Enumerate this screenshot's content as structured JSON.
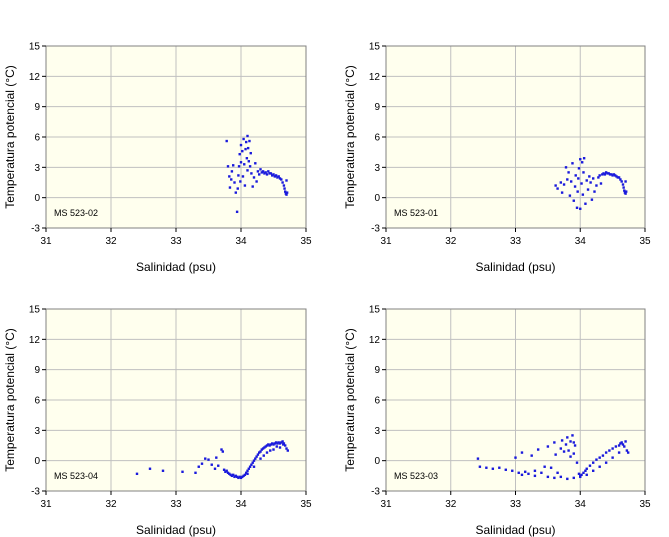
{
  "chart_data": [
    {
      "type": "scatter",
      "title": "",
      "station_label": "MS 523-02",
      "xlabel": "Salinidad (psu)",
      "ylabel": "Temperatura potencial (°C)",
      "xlim": [
        31,
        35
      ],
      "ylim": [
        -3,
        15
      ],
      "xticks": [
        "31",
        "32",
        "33",
        "34",
        "35"
      ],
      "yticks": [
        "-3",
        "0",
        "3",
        "6",
        "9",
        "12",
        "15"
      ],
      "grid": true,
      "point_color": "#1a1adc",
      "plot_background": "#ffffee",
      "points": [
        [
          33.78,
          5.6
        ],
        [
          33.8,
          3.1
        ],
        [
          33.82,
          2.1
        ],
        [
          33.83,
          1.0
        ],
        [
          33.85,
          1.8
        ],
        [
          33.86,
          2.6
        ],
        [
          33.88,
          3.2
        ],
        [
          33.9,
          1.5
        ],
        [
          33.92,
          0.5
        ],
        [
          33.94,
          -1.4
        ],
        [
          33.95,
          0.9
        ],
        [
          33.96,
          2.2
        ],
        [
          33.97,
          3.1
        ],
        [
          33.98,
          4.3
        ],
        [
          33.99,
          1.6
        ],
        [
          34.0,
          3.5
        ],
        [
          34.0,
          5.2
        ],
        [
          34.02,
          4.6
        ],
        [
          34.03,
          2.1
        ],
        [
          34.04,
          5.8
        ],
        [
          34.05,
          3.3
        ],
        [
          34.06,
          1.2
        ],
        [
          34.07,
          4.8
        ],
        [
          34.08,
          5.5
        ],
        [
          34.09,
          3.9
        ],
        [
          34.1,
          6.1
        ],
        [
          34.1,
          2.7
        ],
        [
          34.11,
          4.9
        ],
        [
          34.12,
          3.6
        ],
        [
          34.13,
          5.6
        ],
        [
          34.14,
          3.1
        ],
        [
          34.15,
          4.4
        ],
        [
          34.16,
          2.4
        ],
        [
          34.18,
          1.1
        ],
        [
          34.2,
          2.0
        ],
        [
          34.22,
          3.4
        ],
        [
          34.24,
          1.6
        ],
        [
          34.26,
          2.6
        ],
        [
          34.28,
          2.3
        ],
        [
          34.3,
          2.8
        ],
        [
          34.32,
          2.5
        ],
        [
          34.34,
          2.6
        ],
        [
          34.36,
          2.4
        ],
        [
          34.38,
          2.5
        ],
        [
          34.4,
          2.3
        ],
        [
          34.42,
          2.6
        ],
        [
          34.44,
          2.4
        ],
        [
          34.46,
          2.4
        ],
        [
          34.48,
          2.2
        ],
        [
          34.5,
          2.3
        ],
        [
          34.52,
          2.1
        ],
        [
          34.54,
          2.2
        ],
        [
          34.56,
          2.0
        ],
        [
          34.58,
          2.1
        ],
        [
          34.6,
          1.9
        ],
        [
          34.62,
          1.8
        ],
        [
          34.64,
          1.5
        ],
        [
          34.66,
          1.2
        ],
        [
          34.67,
          0.9
        ],
        [
          34.68,
          0.6
        ],
        [
          34.69,
          0.4
        ],
        [
          34.7,
          0.3
        ],
        [
          34.7,
          1.7
        ],
        [
          34.71,
          0.5
        ]
      ]
    },
    {
      "type": "scatter",
      "title": "",
      "station_label": "MS 523-01",
      "xlabel": "Salinidad (psu)",
      "ylabel": "Temperatura potencial (°C)",
      "xlim": [
        31,
        35
      ],
      "ylim": [
        -3,
        15
      ],
      "xticks": [
        "31",
        "32",
        "33",
        "34",
        "35"
      ],
      "yticks": [
        "-3",
        "0",
        "3",
        "6",
        "9",
        "12",
        "15"
      ],
      "grid": true,
      "point_color": "#1a1adc",
      "plot_background": "#ffffee",
      "points": [
        [
          33.62,
          1.2
        ],
        [
          33.65,
          0.9
        ],
        [
          33.7,
          1.5
        ],
        [
          33.72,
          0.5
        ],
        [
          33.75,
          1.3
        ],
        [
          33.78,
          3.0
        ],
        [
          33.8,
          1.8
        ],
        [
          33.82,
          2.5
        ],
        [
          33.84,
          0.2
        ],
        [
          33.86,
          1.6
        ],
        [
          33.88,
          3.4
        ],
        [
          33.9,
          -0.3
        ],
        [
          33.92,
          1.1
        ],
        [
          33.93,
          2.2
        ],
        [
          33.95,
          -1.0
        ],
        [
          33.96,
          0.6
        ],
        [
          33.97,
          1.9
        ],
        [
          33.98,
          2.9
        ],
        [
          34.0,
          3.8
        ],
        [
          34.0,
          -1.1
        ],
        [
          34.02,
          1.4
        ],
        [
          34.03,
          3.5
        ],
        [
          34.04,
          0.3
        ],
        [
          34.05,
          2.5
        ],
        [
          34.06,
          3.9
        ],
        [
          34.08,
          -0.6
        ],
        [
          34.1,
          1.7
        ],
        [
          34.12,
          0.8
        ],
        [
          34.14,
          2.1
        ],
        [
          34.16,
          1.5
        ],
        [
          34.18,
          -0.2
        ],
        [
          34.2,
          1.9
        ],
        [
          34.22,
          0.6
        ],
        [
          34.25,
          1.2
        ],
        [
          34.28,
          2.0
        ],
        [
          34.3,
          2.2
        ],
        [
          34.32,
          1.4
        ],
        [
          34.34,
          2.3
        ],
        [
          34.36,
          2.4
        ],
        [
          34.38,
          2.3
        ],
        [
          34.4,
          2.5
        ],
        [
          34.42,
          2.4
        ],
        [
          34.44,
          2.4
        ],
        [
          34.46,
          2.3
        ],
        [
          34.48,
          2.3
        ],
        [
          34.5,
          2.2
        ],
        [
          34.52,
          2.3
        ],
        [
          34.54,
          2.2
        ],
        [
          34.56,
          2.1
        ],
        [
          34.58,
          2.0
        ],
        [
          34.6,
          2.0
        ],
        [
          34.62,
          1.8
        ],
        [
          34.64,
          1.6
        ],
        [
          34.66,
          1.3
        ],
        [
          34.67,
          1.0
        ],
        [
          34.68,
          0.7
        ],
        [
          34.69,
          0.5
        ],
        [
          34.7,
          0.4
        ],
        [
          34.7,
          1.6
        ],
        [
          34.71,
          0.6
        ]
      ]
    },
    {
      "type": "scatter",
      "title": "",
      "station_label": "MS 523-04",
      "xlabel": "Salinidad (psu)",
      "ylabel": "Temperatura potencial (°C)",
      "xlim": [
        31,
        35
      ],
      "ylim": [
        -3,
        15
      ],
      "xticks": [
        "31",
        "32",
        "33",
        "34",
        "35"
      ],
      "yticks": [
        "-3",
        "0",
        "3",
        "6",
        "9",
        "12",
        "15"
      ],
      "grid": true,
      "point_color": "#1a1adc",
      "plot_background": "#ffffee",
      "points": [
        [
          32.4,
          -1.3
        ],
        [
          32.6,
          -0.8
        ],
        [
          32.8,
          -1.0
        ],
        [
          33.1,
          -1.1
        ],
        [
          33.3,
          -1.2
        ],
        [
          33.35,
          -0.6
        ],
        [
          33.4,
          -0.3
        ],
        [
          33.45,
          0.2
        ],
        [
          33.5,
          0.1
        ],
        [
          33.55,
          -0.4
        ],
        [
          33.6,
          -0.8
        ],
        [
          33.62,
          0.3
        ],
        [
          33.65,
          -0.5
        ],
        [
          33.7,
          1.1
        ],
        [
          33.72,
          0.9
        ],
        [
          33.74,
          -0.9
        ],
        [
          33.76,
          -1.1
        ],
        [
          33.78,
          -1.0
        ],
        [
          33.8,
          -1.2
        ],
        [
          33.82,
          -1.3
        ],
        [
          33.84,
          -1.4
        ],
        [
          33.86,
          -1.5
        ],
        [
          33.88,
          -1.4
        ],
        [
          33.9,
          -1.6
        ],
        [
          33.92,
          -1.5
        ],
        [
          33.94,
          -1.6
        ],
        [
          33.96,
          -1.7
        ],
        [
          33.98,
          -1.6
        ],
        [
          34.0,
          -1.7
        ],
        [
          34.02,
          -1.6
        ],
        [
          34.04,
          -1.5
        ],
        [
          34.06,
          -1.4
        ],
        [
          34.08,
          -1.2
        ],
        [
          34.1,
          -1.0
        ],
        [
          34.12,
          -0.8
        ],
        [
          34.14,
          -0.6
        ],
        [
          34.16,
          -0.4
        ],
        [
          34.18,
          -0.2
        ],
        [
          34.2,
          0.0
        ],
        [
          34.22,
          0.2
        ],
        [
          34.24,
          0.4
        ],
        [
          34.26,
          0.6
        ],
        [
          34.28,
          0.8
        ],
        [
          34.3,
          0.9
        ],
        [
          34.32,
          1.1
        ],
        [
          34.34,
          1.2
        ],
        [
          34.36,
          1.3
        ],
        [
          34.38,
          1.4
        ],
        [
          34.4,
          1.5
        ],
        [
          34.42,
          1.6
        ],
        [
          34.44,
          1.5
        ],
        [
          34.46,
          1.6
        ],
        [
          34.48,
          1.7
        ],
        [
          34.5,
          1.6
        ],
        [
          34.52,
          1.7
        ],
        [
          34.54,
          1.8
        ],
        [
          34.56,
          1.7
        ],
        [
          34.58,
          1.8
        ],
        [
          34.6,
          1.7
        ],
        [
          34.62,
          1.8
        ],
        [
          34.64,
          1.9
        ],
        [
          34.66,
          1.7
        ],
        [
          34.68,
          1.5
        ],
        [
          34.7,
          1.2
        ],
        [
          34.72,
          1.0
        ],
        [
          34.2,
          -0.6
        ],
        [
          34.3,
          0.2
        ],
        [
          34.4,
          0.8
        ],
        [
          34.5,
          1.1
        ],
        [
          34.6,
          1.3
        ],
        [
          34.1,
          -1.3
        ],
        [
          34.35,
          0.5
        ],
        [
          34.45,
          1.0
        ],
        [
          34.55,
          1.4
        ],
        [
          34.65,
          1.6
        ]
      ]
    },
    {
      "type": "scatter",
      "title": "",
      "station_label": "MS 523-03",
      "xlabel": "Salinidad (psu)",
      "ylabel": "Temperatura potencial (°C)",
      "xlim": [
        31,
        35
      ],
      "ylim": [
        -3,
        15
      ],
      "xticks": [
        "31",
        "32",
        "33",
        "34",
        "35"
      ],
      "yticks": [
        "-3",
        "0",
        "3",
        "6",
        "9",
        "12",
        "15"
      ],
      "grid": true,
      "point_color": "#1a1adc",
      "plot_background": "#ffffee",
      "points": [
        [
          32.42,
          0.2
        ],
        [
          32.45,
          -0.6
        ],
        [
          32.55,
          -0.7
        ],
        [
          32.65,
          -0.8
        ],
        [
          32.75,
          -0.7
        ],
        [
          32.85,
          -0.9
        ],
        [
          32.95,
          -1.0
        ],
        [
          33.0,
          0.3
        ],
        [
          33.05,
          -1.2
        ],
        [
          33.1,
          0.8
        ],
        [
          33.15,
          -1.1
        ],
        [
          33.2,
          -1.3
        ],
        [
          33.25,
          0.5
        ],
        [
          33.3,
          -1.0
        ],
        [
          33.35,
          1.1
        ],
        [
          33.4,
          -1.2
        ],
        [
          33.45,
          -0.6
        ],
        [
          33.5,
          1.4
        ],
        [
          33.55,
          -0.7
        ],
        [
          33.6,
          1.8
        ],
        [
          33.62,
          0.6
        ],
        [
          33.65,
          -1.2
        ],
        [
          33.7,
          1.2
        ],
        [
          33.72,
          2.0
        ],
        [
          33.75,
          0.9
        ],
        [
          33.78,
          1.6
        ],
        [
          33.8,
          2.3
        ],
        [
          33.82,
          1.0
        ],
        [
          33.85,
          1.9
        ],
        [
          33.88,
          2.5
        ],
        [
          33.9,
          0.7
        ],
        [
          33.92,
          1.5
        ],
        [
          33.95,
          -0.2
        ],
        [
          33.98,
          -1.3
        ],
        [
          34.0,
          -1.5
        ],
        [
          34.02,
          -1.4
        ],
        [
          34.05,
          -1.2
        ],
        [
          34.08,
          -1.0
        ],
        [
          34.1,
          -0.8
        ],
        [
          34.15,
          -0.5
        ],
        [
          34.2,
          -0.2
        ],
        [
          34.25,
          0.1
        ],
        [
          34.3,
          0.3
        ],
        [
          34.35,
          0.5
        ],
        [
          34.4,
          0.8
        ],
        [
          34.45,
          1.0
        ],
        [
          34.5,
          1.2
        ],
        [
          34.55,
          1.4
        ],
        [
          34.6,
          1.5
        ],
        [
          34.62,
          1.7
        ],
        [
          34.64,
          1.8
        ],
        [
          34.66,
          1.6
        ],
        [
          34.68,
          1.4
        ],
        [
          34.7,
          1.9
        ],
        [
          34.72,
          1.0
        ],
        [
          34.74,
          0.8
        ],
        [
          33.5,
          -1.6
        ],
        [
          33.6,
          -1.7
        ],
        [
          33.7,
          -1.6
        ],
        [
          33.8,
          -1.8
        ],
        [
          33.9,
          -1.7
        ],
        [
          34.0,
          -1.6
        ],
        [
          34.1,
          -1.4
        ],
        [
          34.2,
          -1.0
        ],
        [
          34.3,
          -0.6
        ],
        [
          34.4,
          -0.2
        ],
        [
          34.5,
          0.3
        ],
        [
          34.6,
          0.8
        ],
        [
          33.3,
          -1.5
        ],
        [
          33.1,
          -1.4
        ],
        [
          33.9,
          1.8
        ],
        [
          33.85,
          0.4
        ]
      ]
    }
  ]
}
